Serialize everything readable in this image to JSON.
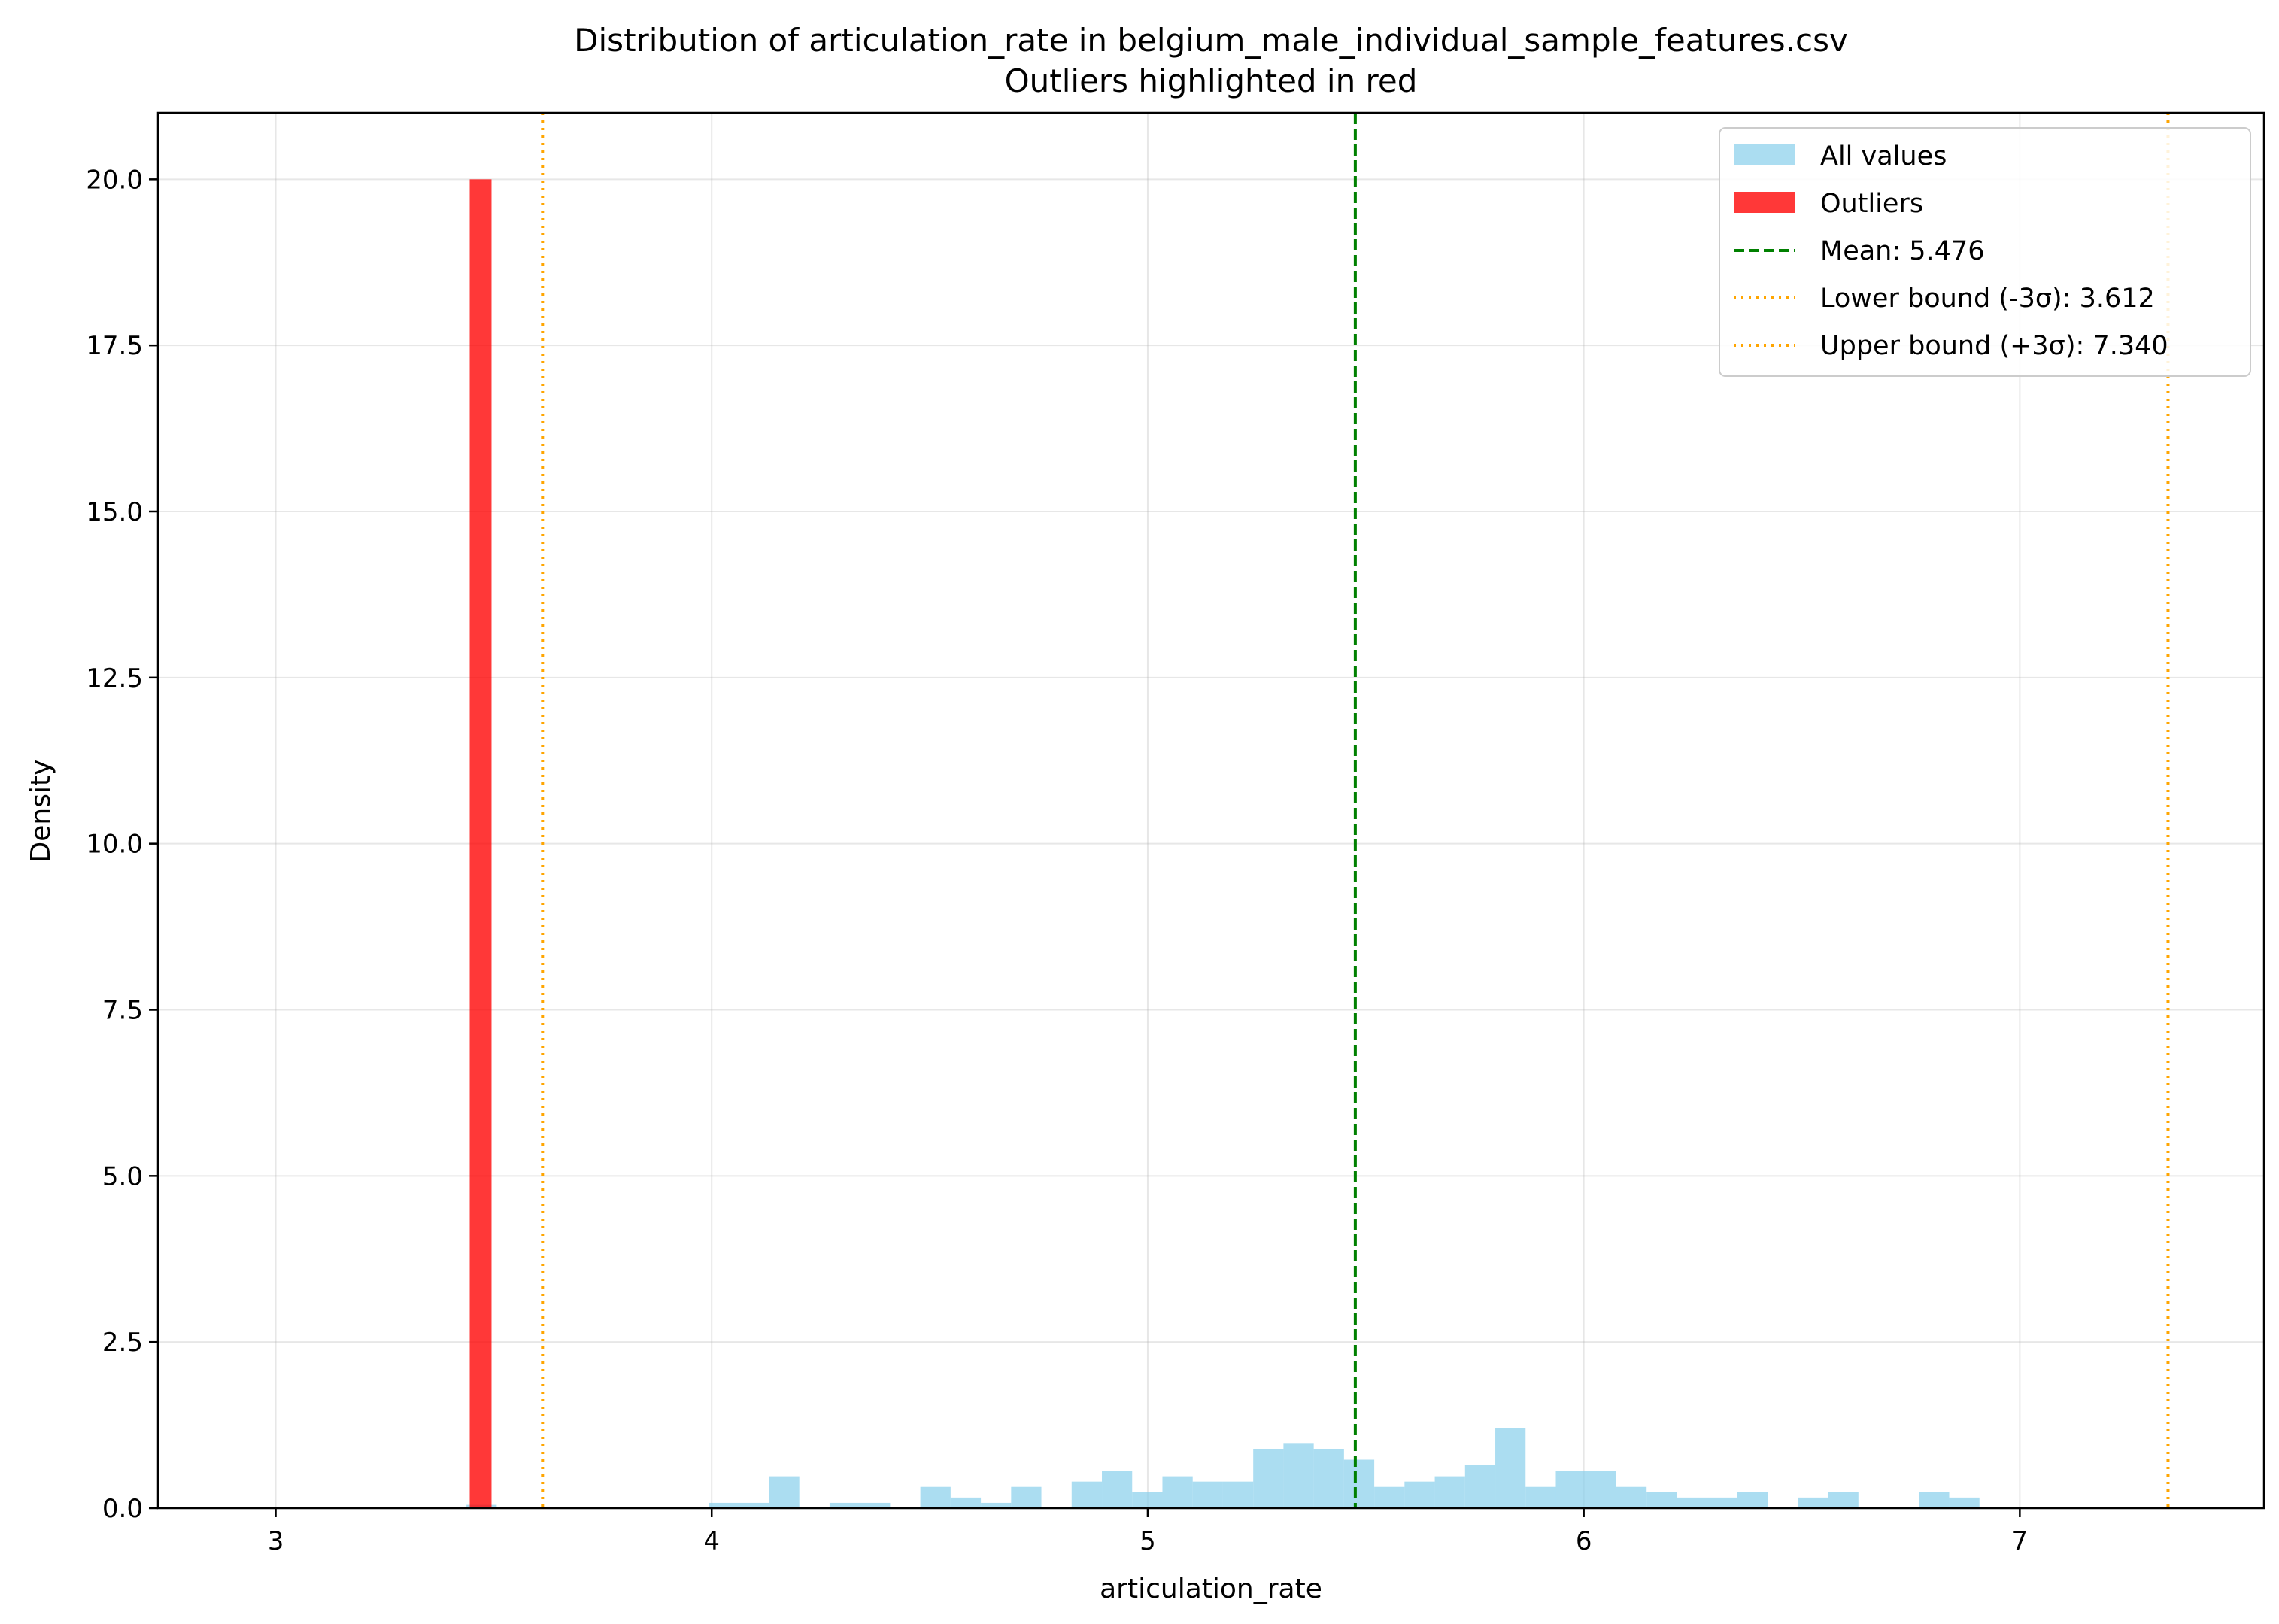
{
  "chart_data": {
    "type": "bar",
    "title": "Distribution of articulation_rate in belgium_male_individual_sample_features.csv",
    "subtitle": "Outliers highlighted in red",
    "xlabel": "articulation_rate",
    "ylabel": "Density",
    "xlim": [
      2.73,
      7.56
    ],
    "ylim": [
      0,
      21
    ],
    "xticks": [
      3,
      4,
      5,
      6,
      7
    ],
    "xtick_labels": [
      "3",
      "4",
      "5",
      "6",
      "7"
    ],
    "yticks": [
      0,
      2.5,
      5,
      7.5,
      10,
      12.5,
      15,
      17.5,
      20
    ],
    "ytick_labels": [
      "0.0",
      "2.5",
      "5.0",
      "7.5",
      "10.0",
      "12.5",
      "15.0",
      "17.5",
      "20.0"
    ],
    "grid": true,
    "legend_position": "top-right",
    "colors": {
      "all_values": "#87ceeb",
      "outliers": "#ff0000",
      "mean": "#008000",
      "bounds": "#ffa500"
    },
    "series": [
      {
        "name": "All values",
        "bin_width": 0.0694,
        "bins": [
          [
            3.4375,
            0.05
          ],
          [
            3.9927,
            0.08
          ],
          [
            4.0621,
            0.08
          ],
          [
            4.1315,
            0.48
          ],
          [
            4.2703,
            0.08
          ],
          [
            4.3397,
            0.08
          ],
          [
            4.4785,
            0.32
          ],
          [
            4.5479,
            0.16
          ],
          [
            4.6173,
            0.08
          ],
          [
            4.6867,
            0.32
          ],
          [
            4.8255,
            0.4
          ],
          [
            4.8949,
            0.56
          ],
          [
            4.9643,
            0.24
          ],
          [
            5.0337,
            0.48
          ],
          [
            5.1031,
            0.4
          ],
          [
            5.1725,
            0.4
          ],
          [
            5.2419,
            0.89
          ],
          [
            5.3113,
            0.97
          ],
          [
            5.3807,
            0.89
          ],
          [
            5.4501,
            0.73
          ],
          [
            5.5195,
            0.32
          ],
          [
            5.5889,
            0.4
          ],
          [
            5.6583,
            0.48
          ],
          [
            5.7277,
            0.65
          ],
          [
            5.7971,
            1.21
          ],
          [
            5.8665,
            0.32
          ],
          [
            5.9359,
            0.56
          ],
          [
            6.0053,
            0.56
          ],
          [
            6.0747,
            0.32
          ],
          [
            6.1441,
            0.24
          ],
          [
            6.2135,
            0.16
          ],
          [
            6.2829,
            0.16
          ],
          [
            6.3523,
            0.24
          ],
          [
            6.4911,
            0.16
          ],
          [
            6.5605,
            0.24
          ],
          [
            6.7687,
            0.24
          ],
          [
            6.8381,
            0.16
          ]
        ]
      },
      {
        "name": "Outliers",
        "bins": [
          [
            3.445,
            3.495,
            20.0
          ]
        ]
      }
    ],
    "lines": [
      {
        "name": "Mean: 5.476",
        "x": 5.476,
        "style": "dashed",
        "color": "#008000"
      },
      {
        "name": "Lower bound (-3σ): 3.612",
        "x": 3.612,
        "style": "dotted",
        "color": "#ffa500"
      },
      {
        "name": "Upper bound (+3σ): 7.340",
        "x": 7.34,
        "style": "dotted",
        "color": "#ffa500"
      }
    ]
  }
}
